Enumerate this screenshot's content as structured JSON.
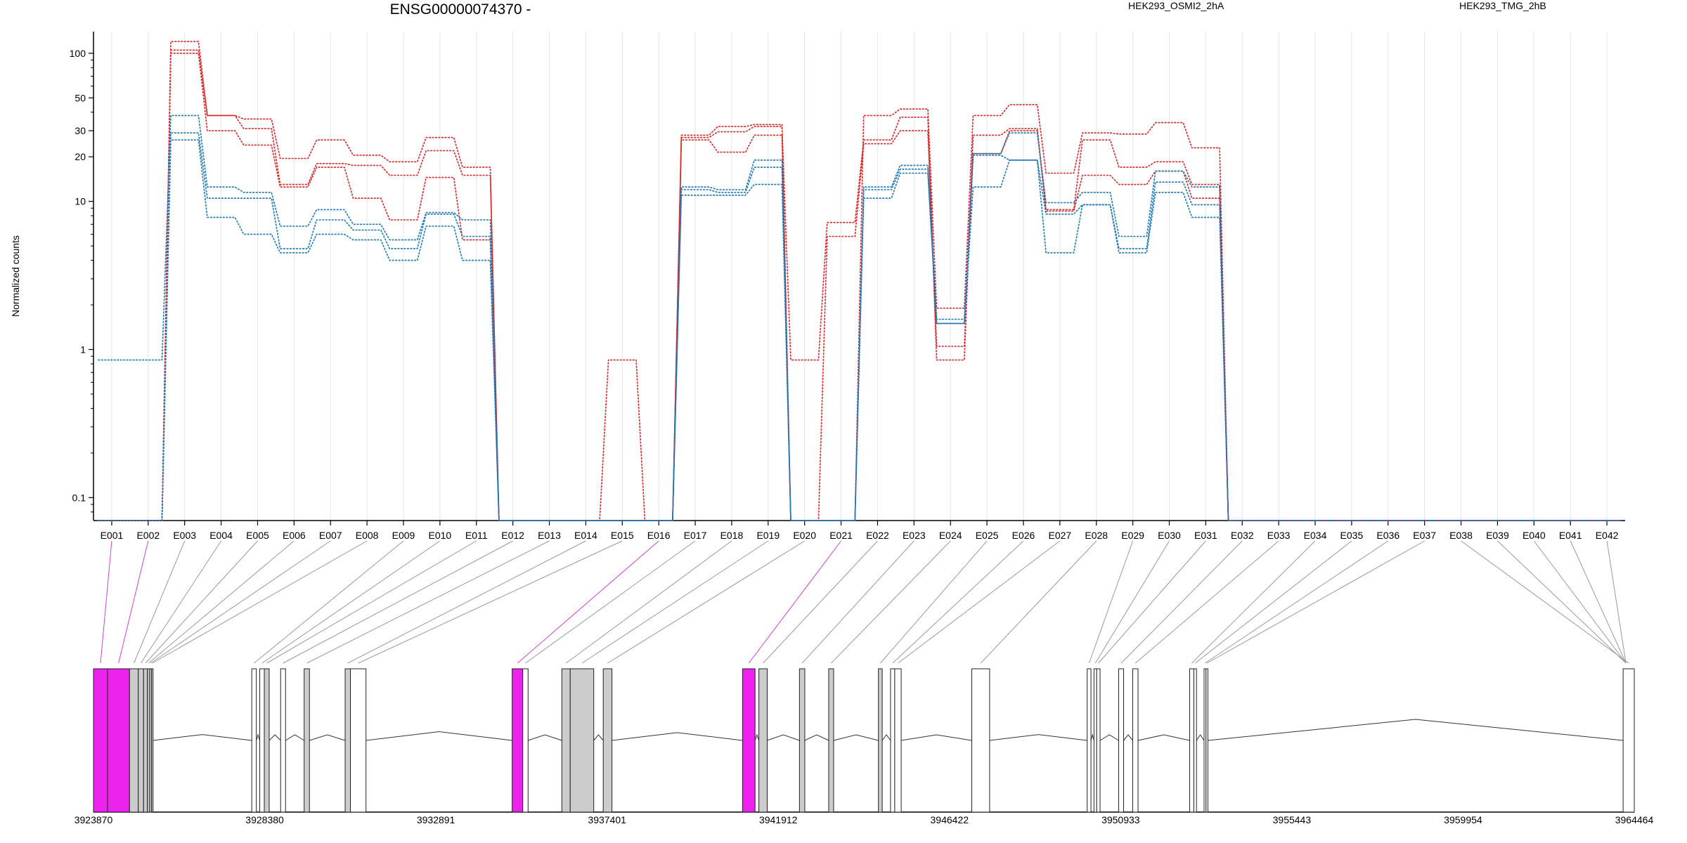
{
  "chart_data": {
    "type": "line",
    "title": "ENSG00000074370 -",
    "ylabel": "Normalized counts",
    "y_scale": "log",
    "y_ticks": [
      0.1,
      1,
      10,
      20,
      30,
      50,
      100
    ],
    "y_tick_labels": [
      "0.1",
      "1",
      "10",
      "20",
      "30",
      "50",
      "100"
    ],
    "ylim": [
      0.07,
      140
    ],
    "grid": "vertical",
    "legend_placement": "top",
    "categories": [
      "E001",
      "E002",
      "E003",
      "E004",
      "E005",
      "E006",
      "E007",
      "E008",
      "E009",
      "E010",
      "E011",
      "E012",
      "E013",
      "E014",
      "E015",
      "E016",
      "E017",
      "E018",
      "E019",
      "E020",
      "E021",
      "E022",
      "E023",
      "E024",
      "E025",
      "E026",
      "E027",
      "E028",
      "E029",
      "E030",
      "E031",
      "E032",
      "E033",
      "E034",
      "E035",
      "E036",
      "E037",
      "E038",
      "E039",
      "E040",
      "E041",
      "E042"
    ],
    "series": [
      {
        "name": "HEK293_OSMI2_2hA",
        "group": "OSMI2",
        "color": "#d62728",
        "values": [
          0.07,
          0.07,
          120,
          38,
          36,
          19.5,
          26,
          20.5,
          18.5,
          27,
          17,
          0.07,
          0.07,
          0.07,
          0.07,
          0.07,
          28,
          32,
          33,
          0.07,
          0.07,
          38,
          42,
          1.9,
          38,
          45,
          15.5,
          29,
          28.5,
          34,
          23,
          0.07,
          0.07,
          0.07,
          0.07,
          0.07,
          0.07,
          0.07,
          0.07,
          0.07,
          0.07,
          0.07
        ]
      },
      {
        "name": "HEK293_OSMI2_2hA",
        "group": "OSMI2",
        "color": "#d62728",
        "values": [
          0.07,
          0.07,
          105,
          38,
          31,
          13,
          18,
          17.5,
          15,
          22,
          15,
          0.07,
          0.07,
          0.07,
          0.85,
          0.07,
          27,
          29.5,
          32,
          0.85,
          7.2,
          26,
          37,
          0.85,
          28,
          31,
          8.8,
          26,
          17,
          18.5,
          13,
          0.07,
          0.07,
          0.07,
          0.07,
          0.07,
          0.07,
          0.07,
          0.07,
          0.07,
          0.07,
          0.07
        ]
      },
      {
        "name": "HEK293_OSMI2_2hA",
        "group": "OSMI2",
        "color": "#d62728",
        "values": [
          0.07,
          0.07,
          100,
          30,
          24,
          12.5,
          17,
          10.5,
          7.5,
          14.5,
          5.5,
          0.07,
          0.07,
          0.07,
          0.07,
          0.07,
          26,
          21.5,
          28,
          0.07,
          5.8,
          24.5,
          30,
          1.05,
          21,
          30,
          8.6,
          15,
          13,
          16,
          10.5,
          0.07,
          0.07,
          0.07,
          0.07,
          0.07,
          0.07,
          0.07,
          0.07,
          0.07,
          0.07,
          0.07
        ]
      },
      {
        "name": "HEK293_TMG_2hB",
        "group": "TMG",
        "color": "#1f77b4",
        "values": [
          0.85,
          0.85,
          38,
          12.5,
          11.5,
          6.8,
          8.8,
          7.0,
          5.5,
          8.4,
          7.5,
          0.07,
          0.07,
          0.07,
          0.07,
          0.07,
          12.5,
          12,
          19,
          0.07,
          0.07,
          12.5,
          17.5,
          1.6,
          21,
          29,
          9.8,
          11.5,
          5.8,
          16,
          12.5,
          0.07,
          0.07,
          0.07,
          0.07,
          0.07,
          0.07,
          0.07,
          0.07,
          0.07,
          0.07,
          0.07
        ]
      },
      {
        "name": "HEK293_TMG_2hB",
        "group": "TMG",
        "color": "#1f77b4",
        "values": [
          0.07,
          0.07,
          29,
          10.5,
          10.5,
          4.8,
          7.5,
          6.4,
          4.8,
          8.2,
          5.8,
          0.07,
          0.07,
          0.07,
          0.07,
          0.07,
          12,
          11.5,
          17,
          0.07,
          0.07,
          12,
          16.5,
          1.5,
          20.5,
          19,
          8.2,
          9.5,
          4.8,
          13.5,
          9.5,
          0.07,
          0.07,
          0.07,
          0.07,
          0.07,
          0.07,
          0.07,
          0.07,
          0.07,
          0.07,
          0.07
        ]
      },
      {
        "name": "HEK293_TMG_2hB",
        "group": "TMG",
        "color": "#1f77b4",
        "values": [
          0.07,
          0.07,
          26,
          7.8,
          6.0,
          4.5,
          6.0,
          5.5,
          4.0,
          6.8,
          4.0,
          0.07,
          0.07,
          0.07,
          0.07,
          0.07,
          11,
          11,
          13,
          0.07,
          0.07,
          10.5,
          15.5,
          1.5,
          12.5,
          19,
          4.5,
          9.5,
          4.5,
          11.5,
          7.8,
          0.07,
          0.07,
          0.07,
          0.07,
          0.07,
          0.07,
          0.07,
          0.07,
          0.07,
          0.07,
          0.07
        ]
      }
    ],
    "legend": [
      {
        "label": "HEK293_OSMI2_2hA",
        "color": "#d62728"
      },
      {
        "label": "HEK293_TMG_2hB",
        "color": "#1f77b4"
      }
    ],
    "gene_model": {
      "coordinate_labels": [
        "3923870",
        "3928380",
        "3932891",
        "3937401",
        "3941912",
        "3946422",
        "3950933",
        "3955443",
        "3959954",
        "3964464"
      ],
      "coord_start": 3923870,
      "coord_end": 3964464,
      "exons": [
        {
          "id": "E001",
          "start": 3923870,
          "end": 3924240,
          "fill": "#ee22ee"
        },
        {
          "id": "E002",
          "start": 3924240,
          "end": 3924820,
          "fill": "#ee22ee"
        },
        {
          "id": "E003",
          "start": 3924820,
          "end": 3925050,
          "fill": "#cccccc"
        },
        {
          "id": "E004",
          "start": 3925050,
          "end": 3925190,
          "fill": "#cccccc"
        },
        {
          "id": "E005",
          "start": 3925190,
          "end": 3925290,
          "fill": "#cccccc"
        },
        {
          "id": "E006",
          "start": 3925290,
          "end": 3925350,
          "fill": "#cccccc"
        },
        {
          "id": "E007",
          "start": 3925350,
          "end": 3925400,
          "fill": "#cccccc"
        },
        {
          "id": "E008",
          "start": 3925400,
          "end": 3925440,
          "fill": "#cccccc"
        },
        {
          "id": "E009",
          "start": 3928040,
          "end": 3928160,
          "fill": "#ffffff"
        },
        {
          "id": "E010",
          "start": 3928250,
          "end": 3928370,
          "fill": "#ffffff"
        },
        {
          "id": "E011",
          "start": 3928370,
          "end": 3928500,
          "fill": "#cccccc"
        },
        {
          "id": "E012",
          "start": 3928800,
          "end": 3928930,
          "fill": "#ffffff"
        },
        {
          "id": "E013",
          "start": 3929420,
          "end": 3929560,
          "fill": "#cccccc"
        },
        {
          "id": "E014",
          "start": 3930500,
          "end": 3930640,
          "fill": "#cccccc"
        },
        {
          "id": "E015",
          "start": 3930640,
          "end": 3931050,
          "fill": "#ffffff"
        },
        {
          "id": "E016",
          "start": 3934900,
          "end": 3935180,
          "fill": "#ee22ee"
        },
        {
          "id": "E017",
          "start": 3935180,
          "end": 3935320,
          "fill": "#ffffff"
        },
        {
          "id": "E018",
          "start": 3936210,
          "end": 3936430,
          "fill": "#cccccc"
        },
        {
          "id": "E019",
          "start": 3936430,
          "end": 3937050,
          "fill": "#cccccc"
        },
        {
          "id": "E020",
          "start": 3937300,
          "end": 3937530,
          "fill": "#cccccc"
        },
        {
          "id": "E021",
          "start": 3940970,
          "end": 3941300,
          "fill": "#ee22ee"
        },
        {
          "id": "E022",
          "start": 3941400,
          "end": 3941620,
          "fill": "#cccccc"
        },
        {
          "id": "E023",
          "start": 3942470,
          "end": 3942610,
          "fill": "#cccccc"
        },
        {
          "id": "E024",
          "start": 3943240,
          "end": 3943370,
          "fill": "#cccccc"
        },
        {
          "id": "E025",
          "start": 3944550,
          "end": 3944650,
          "fill": "#cccccc"
        },
        {
          "id": "E026",
          "start": 3944870,
          "end": 3944980,
          "fill": "#ffffff"
        },
        {
          "id": "E027",
          "start": 3944980,
          "end": 3945150,
          "fill": "#ffffff"
        },
        {
          "id": "E028",
          "start": 3947010,
          "end": 3947480,
          "fill": "#ffffff"
        },
        {
          "id": "E029",
          "start": 3950050,
          "end": 3950150,
          "fill": "#ffffff"
        },
        {
          "id": "E030",
          "start": 3950230,
          "end": 3950300,
          "fill": "#ffffff"
        },
        {
          "id": "E031",
          "start": 3950300,
          "end": 3950390,
          "fill": "#ffffff"
        },
        {
          "id": "E032",
          "start": 3950880,
          "end": 3951010,
          "fill": "#ffffff"
        },
        {
          "id": "E033",
          "start": 3951250,
          "end": 3951390,
          "fill": "#ffffff"
        },
        {
          "id": "E034",
          "start": 3952750,
          "end": 3952860,
          "fill": "#ffffff"
        },
        {
          "id": "E035",
          "start": 3952860,
          "end": 3952930,
          "fill": "#ffffff"
        },
        {
          "id": "E036",
          "start": 3953130,
          "end": 3953180,
          "fill": "#ffffff"
        },
        {
          "id": "E037",
          "start": 3953180,
          "end": 3953230,
          "fill": "#ffffff"
        },
        {
          "id": "E038",
          "start": 3964170,
          "end": 3964464,
          "fill": "#ffffff"
        }
      ]
    }
  }
}
